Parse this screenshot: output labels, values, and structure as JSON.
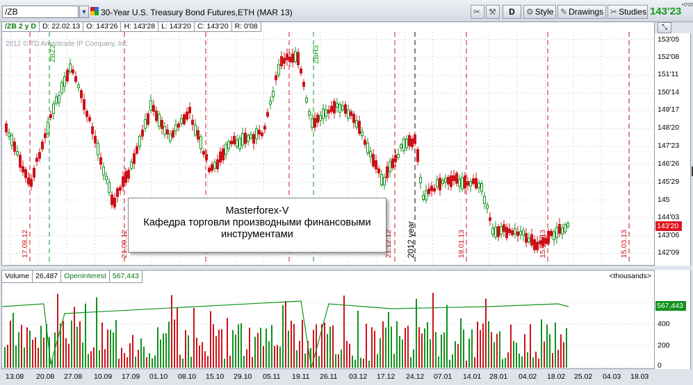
{
  "toolbar": {
    "symbol": "/ZB",
    "description": "30-Year U.S. Treasury Bond Futures,ETH (MAR 13)",
    "d_label": "D",
    "style_label": "Style",
    "drawings_label": "Drawings",
    "studies_label": "Studies",
    "last_price": "143'23",
    "last_change": "+0'02"
  },
  "info_bar": {
    "symbol_period": "/ZB 2 y D",
    "date": "D: 22.02.13",
    "open": "O: 143'26",
    "high": "H: 143'28",
    "low": "L: 143'20",
    "close": "C: 143'20",
    "range": "R: 0'08"
  },
  "copyright": "2012 © TD Ameritrade IP Company, Inc.",
  "price_axis": {
    "ticks": [
      "153'05",
      "152'08",
      "151'11",
      "150'14",
      "149'17",
      "148'20",
      "147'23",
      "146'26",
      "145'29",
      "145",
      "144'03",
      "143'06",
      "142'09"
    ],
    "current_tag": "143'20"
  },
  "vertical_labels": [
    {
      "text": "17.08.12",
      "color": "red"
    },
    {
      "text": "ZBZ2",
      "color": "green"
    },
    {
      "text": "21.09.12",
      "color": "red"
    },
    {
      "text": "ZBH3",
      "color": "green"
    },
    {
      "text": "21.12.12",
      "color": "red"
    },
    {
      "text": "2012 year",
      "color": "black"
    },
    {
      "text": "18.01.13",
      "color": "red"
    },
    {
      "text": "15.02.13",
      "color": "red"
    },
    {
      "text": "15.03.13",
      "color": "red"
    }
  ],
  "note": {
    "line1": "Masterforex-V",
    "line2": "Кафедра торговли производными финансовыми",
    "line3": "инструментами"
  },
  "volume_panel": {
    "volume_label": "Volume",
    "volume_value": "26,487",
    "oi_label": "OpenInterest",
    "oi_value": "567,443",
    "units": "<thousands>",
    "ticks": [
      "400",
      "200",
      "0"
    ],
    "oi_tag": "567,443"
  },
  "date_axis": [
    "13.08",
    "20.08",
    "27.08",
    "10.09",
    "17.09",
    "01.10",
    "08.10",
    "15.10",
    "29.10",
    "05.11",
    "19.11",
    "26.11",
    "03.12",
    "17.12",
    "24.12",
    "07.01",
    "14.01",
    "28.01",
    "04.02",
    "18.02",
    "25.02",
    "04.03",
    "18.03"
  ],
  "colors": {
    "up_candle": "#11911b",
    "down_candle": "#cc1219",
    "price_tag": "#e0141e",
    "oi_line": "#11911b"
  }
}
